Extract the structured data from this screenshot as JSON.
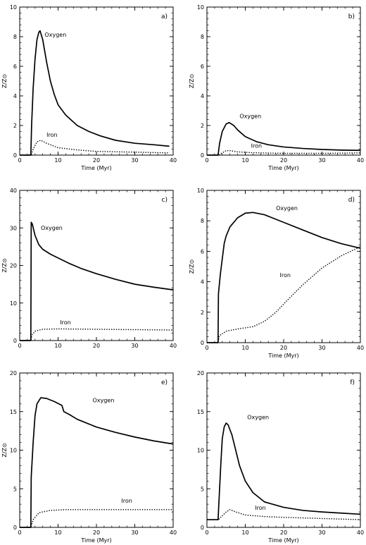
{
  "chart_data": [
    {
      "type": "line",
      "panel": "a)",
      "xlabel": "Time (Myr)",
      "ylabel": "Z/Z⊙",
      "xlim": [
        0,
        40
      ],
      "ylim": [
        0,
        10
      ],
      "xticks": [
        0,
        10,
        20,
        30,
        40
      ],
      "yticks": [
        0,
        2,
        4,
        6,
        8,
        10
      ],
      "series": [
        {
          "name": "Oxygen",
          "style": "solid",
          "points": [
            [
              0,
              0
            ],
            [
              2.9,
              0
            ],
            [
              3.1,
              2.0
            ],
            [
              3.5,
              4.5
            ],
            [
              4.0,
              6.5
            ],
            [
              4.5,
              7.8
            ],
            [
              5.0,
              8.3
            ],
            [
              5.3,
              8.4
            ],
            [
              6.0,
              7.8
            ],
            [
              7.0,
              6.3
            ],
            [
              8.0,
              5.0
            ],
            [
              9.0,
              4.1
            ],
            [
              10.0,
              3.4
            ],
            [
              12.0,
              2.7
            ],
            [
              15.0,
              2.0
            ],
            [
              18.0,
              1.6
            ],
            [
              21.0,
              1.3
            ],
            [
              25.0,
              1.0
            ],
            [
              30.0,
              0.8
            ],
            [
              35.0,
              0.7
            ],
            [
              39.0,
              0.6
            ]
          ]
        },
        {
          "name": "Iron",
          "style": "dotted",
          "points": [
            [
              0,
              0
            ],
            [
              3.0,
              0
            ],
            [
              3.5,
              0.4
            ],
            [
              4.5,
              0.9
            ],
            [
              5.5,
              1.0
            ],
            [
              7.0,
              0.8
            ],
            [
              10.0,
              0.5
            ],
            [
              15.0,
              0.35
            ],
            [
              20.0,
              0.25
            ],
            [
              30.0,
              0.2
            ],
            [
              39.0,
              0.15
            ]
          ]
        }
      ],
      "annotations": [
        {
          "text": "Oxygen",
          "x": 6.5,
          "y": 8.0
        },
        {
          "text": "Iron",
          "x": 7.0,
          "y": 1.25
        }
      ]
    },
    {
      "type": "line",
      "panel": "b)",
      "xlabel": "Time (Myr)",
      "ylabel": "Z/Z⊙",
      "xlim": [
        0,
        40
      ],
      "ylim": [
        0,
        10
      ],
      "xticks": [
        0,
        10,
        20,
        30,
        40
      ],
      "yticks": [
        0,
        2,
        4,
        6,
        8,
        10
      ],
      "series": [
        {
          "name": "Oxygen",
          "style": "solid",
          "points": [
            [
              0,
              0
            ],
            [
              2.9,
              0
            ],
            [
              3.3,
              0.8
            ],
            [
              4.0,
              1.6
            ],
            [
              5.0,
              2.1
            ],
            [
              5.8,
              2.2
            ],
            [
              7.0,
              2.0
            ],
            [
              8.0,
              1.7
            ],
            [
              10.0,
              1.25
            ],
            [
              13.0,
              0.9
            ],
            [
              16.0,
              0.7
            ],
            [
              20.0,
              0.55
            ],
            [
              25.0,
              0.45
            ],
            [
              30.0,
              0.38
            ],
            [
              35.0,
              0.34
            ],
            [
              40.0,
              0.32
            ]
          ]
        },
        {
          "name": "Iron",
          "style": "dotted",
          "points": [
            [
              0,
              0
            ],
            [
              3.0,
              0
            ],
            [
              4.0,
              0.15
            ],
            [
              5.0,
              0.3
            ],
            [
              6.0,
              0.3
            ],
            [
              8.0,
              0.22
            ],
            [
              12.0,
              0.16
            ],
            [
              20.0,
              0.12
            ],
            [
              30.0,
              0.12
            ],
            [
              40.0,
              0.15
            ]
          ]
        }
      ],
      "annotations": [
        {
          "text": "Oxygen",
          "x": 8.5,
          "y": 2.5
        },
        {
          "text": "Iron",
          "x": 11.5,
          "y": 0.5
        }
      ]
    },
    {
      "type": "line",
      "panel": "c)",
      "xlabel": "",
      "ylabel": "Z/Z⊙",
      "xlim": [
        0,
        40
      ],
      "ylim": [
        0,
        40
      ],
      "xticks": [
        0,
        10,
        20,
        30,
        40
      ],
      "yticks": [
        0,
        10,
        20,
        30,
        40
      ],
      "series": [
        {
          "name": "Oxygen",
          "style": "solid",
          "points": [
            [
              0,
              0
            ],
            [
              2.9,
              0
            ],
            [
              3.0,
              31.5
            ],
            [
              3.3,
              31.0
            ],
            [
              4.0,
              28.0
            ],
            [
              5.0,
              25.5
            ],
            [
              6.0,
              24.3
            ],
            [
              8.0,
              23.0
            ],
            [
              10.0,
              22.0
            ],
            [
              13.0,
              20.5
            ],
            [
              16.0,
              19.2
            ],
            [
              20.0,
              17.8
            ],
            [
              25.0,
              16.3
            ],
            [
              30.0,
              15.0
            ],
            [
              35.0,
              14.2
            ],
            [
              40.0,
              13.5
            ]
          ]
        },
        {
          "name": "Iron",
          "style": "dotted",
          "points": [
            [
              0,
              0
            ],
            [
              2.9,
              0
            ],
            [
              3.2,
              1.5
            ],
            [
              4.0,
              2.5
            ],
            [
              6.0,
              3.0
            ],
            [
              10.0,
              3.1
            ],
            [
              20.0,
              3.0
            ],
            [
              30.0,
              2.9
            ],
            [
              40.0,
              2.8
            ]
          ]
        }
      ],
      "annotations": [
        {
          "text": "Oxygen",
          "x": 5.5,
          "y": 29.5
        },
        {
          "text": "Iron",
          "x": 10.5,
          "y": 4.3
        }
      ]
    },
    {
      "type": "line",
      "panel": "d)",
      "xlabel": "Time (Myr)",
      "ylabel": "Z/Z⊙",
      "xlim": [
        0,
        40
      ],
      "ylim": [
        0,
        10
      ],
      "xticks": [
        0,
        10,
        20,
        30,
        40
      ],
      "yticks": [
        0,
        2,
        4,
        6,
        8,
        10
      ],
      "series": [
        {
          "name": "Oxygen",
          "style": "solid",
          "points": [
            [
              0,
              0
            ],
            [
              2.9,
              0
            ],
            [
              3.0,
              3.2
            ],
            [
              3.5,
              4.5
            ],
            [
              4.0,
              5.5
            ],
            [
              4.5,
              6.5
            ],
            [
              5.0,
              7.0
            ],
            [
              6.0,
              7.6
            ],
            [
              8.0,
              8.2
            ],
            [
              10.0,
              8.5
            ],
            [
              12.0,
              8.55
            ],
            [
              15.0,
              8.4
            ],
            [
              20.0,
              7.9
            ],
            [
              25.0,
              7.4
            ],
            [
              30.0,
              6.9
            ],
            [
              35.0,
              6.5
            ],
            [
              40.0,
              6.2
            ]
          ]
        },
        {
          "name": "Iron",
          "style": "dotted",
          "points": [
            [
              0,
              0
            ],
            [
              2.9,
              0
            ],
            [
              3.2,
              0.45
            ],
            [
              5.0,
              0.75
            ],
            [
              8.0,
              0.9
            ],
            [
              12.0,
              1.05
            ],
            [
              15.0,
              1.4
            ],
            [
              18.0,
              2.0
            ],
            [
              21.0,
              2.8
            ],
            [
              25.0,
              3.8
            ],
            [
              30.0,
              4.9
            ],
            [
              35.0,
              5.7
            ],
            [
              40.0,
              6.3
            ]
          ]
        }
      ],
      "annotations": [
        {
          "text": "Oxygen",
          "x": 18.0,
          "y": 8.7
        },
        {
          "text": "Iron",
          "x": 19.0,
          "y": 4.3
        }
      ]
    },
    {
      "type": "line",
      "panel": "e)",
      "xlabel": "Time (Myr)",
      "ylabel": "Z/Z⊙",
      "xlim": [
        0,
        40
      ],
      "ylim": [
        0,
        20
      ],
      "xticks": [
        0,
        10,
        20,
        30,
        40
      ],
      "yticks": [
        0,
        5,
        10,
        15,
        20
      ],
      "series": [
        {
          "name": "Oxygen",
          "style": "solid",
          "points": [
            [
              0,
              0
            ],
            [
              2.9,
              0
            ],
            [
              3.0,
              6.5
            ],
            [
              3.5,
              11.0
            ],
            [
              4.0,
              14.5
            ],
            [
              4.5,
              16.0
            ],
            [
              5.5,
              16.8
            ],
            [
              7.0,
              16.7
            ],
            [
              9.0,
              16.3
            ],
            [
              11.0,
              15.8
            ],
            [
              11.5,
              15.0
            ],
            [
              13.0,
              14.6
            ],
            [
              15.0,
              14.0
            ],
            [
              20.0,
              13.0
            ],
            [
              25.0,
              12.3
            ],
            [
              30.0,
              11.7
            ],
            [
              35.0,
              11.2
            ],
            [
              40.0,
              10.8
            ]
          ]
        },
        {
          "name": "Iron",
          "style": "dotted",
          "points": [
            [
              0,
              0
            ],
            [
              2.9,
              0
            ],
            [
              3.5,
              1.0
            ],
            [
              5.0,
              1.9
            ],
            [
              8.0,
              2.2
            ],
            [
              12.0,
              2.3
            ],
            [
              20.0,
              2.3
            ],
            [
              30.0,
              2.3
            ],
            [
              40.0,
              2.3
            ]
          ]
        }
      ],
      "annotations": [
        {
          "text": "Oxygen",
          "x": 19.0,
          "y": 16.2
        },
        {
          "text": "Iron",
          "x": 26.5,
          "y": 3.2
        }
      ]
    },
    {
      "type": "line",
      "panel": "f)",
      "xlabel": "Time (Myr)",
      "ylabel": "",
      "xlim": [
        0,
        40
      ],
      "ylim": [
        0,
        20
      ],
      "xticks": [
        0,
        10,
        20,
        30,
        40
      ],
      "yticks": [
        0,
        5,
        10,
        15,
        20
      ],
      "series": [
        {
          "name": "Oxygen",
          "style": "solid",
          "points": [
            [
              0,
              1.0
            ],
            [
              2.9,
              1.0
            ],
            [
              3.2,
              4.0
            ],
            [
              3.6,
              8.0
            ],
            [
              4.0,
              11.5
            ],
            [
              4.5,
              13.0
            ],
            [
              5.0,
              13.5
            ],
            [
              5.5,
              13.3
            ],
            [
              6.5,
              12.0
            ],
            [
              7.5,
              10.0
            ],
            [
              8.5,
              8.0
            ],
            [
              10.0,
              6.0
            ],
            [
              12.0,
              4.5
            ],
            [
              15.0,
              3.3
            ],
            [
              20.0,
              2.6
            ],
            [
              25.0,
              2.2
            ],
            [
              30.0,
              2.0
            ],
            [
              35.0,
              1.85
            ],
            [
              40.0,
              1.7
            ]
          ]
        },
        {
          "name": "Iron",
          "style": "dotted",
          "points": [
            [
              0,
              1.0
            ],
            [
              3.0,
              1.0
            ],
            [
              4.0,
              1.5
            ],
            [
              5.0,
              2.0
            ],
            [
              6.0,
              2.3
            ],
            [
              7.5,
              2.0
            ],
            [
              10.0,
              1.6
            ],
            [
              15.0,
              1.4
            ],
            [
              20.0,
              1.3
            ],
            [
              30.0,
              1.15
            ],
            [
              40.0,
              1.0
            ]
          ]
        }
      ],
      "annotations": [
        {
          "text": "Oxygen",
          "x": 10.5,
          "y": 14.0
        },
        {
          "text": "Iron",
          "x": 12.5,
          "y": 2.3
        }
      ]
    }
  ]
}
